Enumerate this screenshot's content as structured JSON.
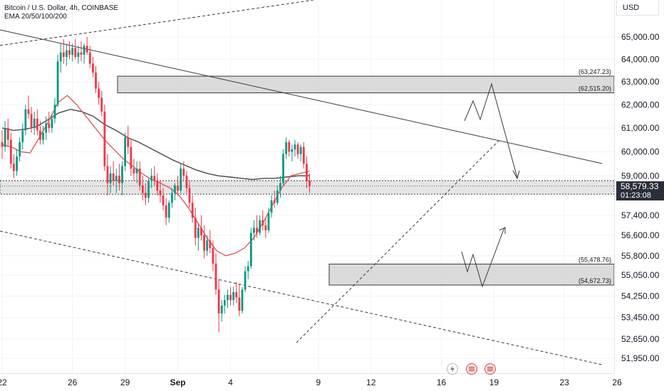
{
  "legend": {
    "symbol_line": "Bitcoin / U.S. Dollar, 4h, COINBASE",
    "indicator_line": "EMA 20/50/100/200"
  },
  "currency_label": "USD",
  "last_price": "58,579.33",
  "countdown": "01:23:08",
  "colors": {
    "up": "#089981",
    "down": "#f23645",
    "ema_fast": "#e05a5e",
    "ema_slow": "#4a4a4a",
    "zone_fill": "#cfcfcf",
    "zone_border": "#3a3a3a",
    "axis_text": "#131722",
    "grid": "#f0f3fa"
  },
  "chart_data": {
    "type": "candlestick",
    "symbol": "Bitcoin / U.S. Dollar",
    "interval": "4h",
    "exchange": "COINBASE",
    "ylim": [
      51500,
      66200
    ],
    "price_scale": "log",
    "y_ticks": [
      "65,000.00",
      "64,000.00",
      "63,000.00",
      "62,000.00",
      "61,000.00",
      "60,000.00",
      "59,000.00",
      "57,400.00",
      "56,600.00",
      "55,800.00",
      "55,050.00",
      "54,250.00",
      "53,450.00",
      "52,650.00",
      "51,950.00"
    ],
    "x_ticks": [
      {
        "label": "22",
        "bar": 0
      },
      {
        "label": "26",
        "bar": 24
      },
      {
        "label": "29",
        "bar": 42
      },
      {
        "label": "Sep",
        "bar": 60
      },
      {
        "label": "4",
        "bar": 78
      },
      {
        "label": "9",
        "bar": 108
      },
      {
        "label": "12",
        "bar": 126
      },
      {
        "label": "16",
        "bar": 150
      },
      {
        "label": "19",
        "bar": 168
      },
      {
        "label": "23",
        "bar": 192
      },
      {
        "label": "26",
        "bar": 210
      }
    ],
    "candles": [
      [
        60400,
        60900,
        59700,
        60200
      ],
      [
        60200,
        61300,
        60000,
        61000
      ],
      [
        61000,
        61400,
        60200,
        60500
      ],
      [
        60500,
        60800,
        59300,
        59500
      ],
      [
        59500,
        59900,
        58900,
        59200
      ],
      [
        59200,
        60100,
        59000,
        59800
      ],
      [
        59800,
        60600,
        59600,
        60400
      ],
      [
        60400,
        61200,
        60100,
        60900
      ],
      [
        60900,
        62000,
        60700,
        61800
      ],
      [
        61800,
        62400,
        61400,
        61600
      ],
      [
        61600,
        61900,
        60800,
        61000
      ],
      [
        61000,
        61700,
        60700,
        61400
      ],
      [
        61400,
        61800,
        60700,
        60900
      ],
      [
        60900,
        61300,
        60300,
        60500
      ],
      [
        60500,
        61100,
        60300,
        60800
      ],
      [
        60800,
        61500,
        60500,
        61200
      ],
      [
        61200,
        61700,
        60800,
        61000
      ],
      [
        61000,
        61600,
        60800,
        61400
      ],
      [
        61400,
        62300,
        61200,
        62000
      ],
      [
        62000,
        64200,
        61900,
        63900
      ],
      [
        63900,
        64700,
        63400,
        64300
      ],
      [
        64300,
        64900,
        63800,
        64100
      ],
      [
        64100,
        64700,
        63700,
        64400
      ],
      [
        64400,
        64800,
        64000,
        64200
      ],
      [
        64200,
        64700,
        63900,
        64500
      ],
      [
        64500,
        64900,
        64000,
        64100
      ],
      [
        64100,
        64600,
        63800,
        64300
      ],
      [
        64300,
        64800,
        63900,
        64200
      ],
      [
        64200,
        64700,
        63800,
        64600
      ],
      [
        64600,
        65000,
        64200,
        64300
      ],
      [
        64300,
        64600,
        63600,
        63800
      ],
      [
        63800,
        64100,
        63200,
        63400
      ],
      [
        63400,
        63700,
        62500,
        62700
      ],
      [
        62700,
        63000,
        62000,
        62300
      ],
      [
        62300,
        62600,
        61500,
        61700
      ],
      [
        61700,
        62000,
        59200,
        59400
      ],
      [
        59400,
        59900,
        58200,
        58700
      ],
      [
        58700,
        59400,
        58300,
        59100
      ],
      [
        59100,
        59600,
        58600,
        58800
      ],
      [
        58800,
        59300,
        58300,
        59000
      ],
      [
        59000,
        59500,
        58400,
        58700
      ],
      [
        58700,
        59600,
        58200,
        59400
      ],
      [
        59400,
        60800,
        59200,
        60600
      ],
      [
        60600,
        61100,
        59900,
        60200
      ],
      [
        60200,
        60500,
        59000,
        59300
      ],
      [
        59300,
        59700,
        58800,
        59100
      ],
      [
        59100,
        59600,
        58700,
        59300
      ],
      [
        59300,
        59600,
        58400,
        58600
      ],
      [
        58600,
        59000,
        58000,
        58300
      ],
      [
        58300,
        58700,
        57800,
        58100
      ],
      [
        58100,
        58900,
        57900,
        58800
      ],
      [
        58800,
        59300,
        58500,
        59000
      ],
      [
        59000,
        59400,
        58600,
        58800
      ],
      [
        58800,
        59100,
        58200,
        58400
      ],
      [
        58400,
        58800,
        57900,
        58200
      ],
      [
        58200,
        58500,
        57600,
        57800
      ],
      [
        57800,
        58100,
        57000,
        57300
      ],
      [
        57300,
        58000,
        57100,
        57900
      ],
      [
        57900,
        58500,
        57700,
        58300
      ],
      [
        58300,
        58700,
        58000,
        58600
      ],
      [
        58600,
        59000,
        58200,
        58400
      ],
      [
        58400,
        59500,
        58300,
        59300
      ],
      [
        59300,
        59600,
        58800,
        59000
      ],
      [
        59000,
        59200,
        58300,
        58500
      ],
      [
        58500,
        58800,
        57700,
        57900
      ],
      [
        57900,
        58200,
        57100,
        57300
      ],
      [
        57300,
        57700,
        56200,
        56500
      ],
      [
        56500,
        57100,
        56000,
        56900
      ],
      [
        56900,
        57400,
        56400,
        56600
      ],
      [
        56600,
        57000,
        55700,
        56000
      ],
      [
        56000,
        56600,
        55800,
        56400
      ],
      [
        56400,
        56800,
        55900,
        56100
      ],
      [
        56100,
        56400,
        55200,
        55500
      ],
      [
        55500,
        55900,
        54300,
        54500
      ],
      [
        54500,
        54900,
        52900,
        53600
      ],
      [
        53600,
        54100,
        53300,
        53900
      ],
      [
        53900,
        54300,
        53600,
        54100
      ],
      [
        54100,
        54500,
        53800,
        54300
      ],
      [
        54300,
        54600,
        53900,
        54100
      ],
      [
        54100,
        54600,
        53900,
        54400
      ],
      [
        54400,
        54800,
        54000,
        54200
      ],
      [
        54200,
        54700,
        53500,
        53700
      ],
      [
        53700,
        54600,
        53600,
        54500
      ],
      [
        54500,
        55400,
        54400,
        55200
      ],
      [
        55200,
        55600,
        54900,
        55400
      ],
      [
        55400,
        56900,
        55300,
        56700
      ],
      [
        56700,
        57200,
        56400,
        56900
      ],
      [
        56900,
        57400,
        56500,
        56700
      ],
      [
        56700,
        57400,
        56600,
        57200
      ],
      [
        57200,
        57600,
        56800,
        57000
      ],
      [
        57000,
        57300,
        56500,
        56800
      ],
      [
        56800,
        57700,
        56700,
        57500
      ],
      [
        57500,
        58200,
        57300,
        58000
      ],
      [
        58000,
        58400,
        57700,
        57900
      ],
      [
        57900,
        58600,
        57800,
        58400
      ],
      [
        58400,
        59000,
        58100,
        58700
      ],
      [
        58700,
        60100,
        58600,
        59900
      ],
      [
        59900,
        60600,
        59700,
        60400
      ],
      [
        60400,
        60500,
        59800,
        60000
      ],
      [
        60000,
        60300,
        59600,
        60100
      ],
      [
        60100,
        60500,
        59800,
        60300
      ],
      [
        60300,
        60400,
        59700,
        59900
      ],
      [
        59900,
        60300,
        59600,
        60200
      ],
      [
        60200,
        60400,
        59300,
        59500
      ],
      [
        59500,
        59800,
        58500,
        58800
      ],
      [
        58800,
        59100,
        58300,
        58579
      ]
    ],
    "ema_fast": [
      60300,
      60200,
      60000,
      59950,
      60600,
      61300,
      62100,
      62400,
      62000,
      61500,
      61000,
      60500,
      60100,
      59700,
      59400,
      59100,
      58850,
      58700,
      58500,
      58200,
      57700,
      57100,
      56500,
      56000,
      55800,
      55900,
      56100,
      56500,
      57100,
      57800,
      58500,
      59000,
      59100,
      59200
    ],
    "ema_slow": [
      61000,
      60900,
      60950,
      61050,
      61350,
      61650,
      61800,
      61700,
      61500,
      61150,
      60900,
      60600,
      60400,
      60150,
      59900,
      59650,
      59450,
      59250,
      59100,
      59000,
      58950,
      58900,
      58850,
      58900,
      58900,
      58950,
      59000,
      59000
    ],
    "zones": [
      {
        "top": 63247.23,
        "bottom": 62515.2,
        "top_label": "(63,247.23)",
        "bottom_label": "(62,515.20)"
      },
      {
        "top": 55478.76,
        "bottom": 54672.73,
        "top_label": "(55,478.76)",
        "bottom_label": "(54,672.73)"
      },
      {
        "top": 58800,
        "bottom": 58250,
        "top_label": "",
        "bottom_label": ""
      }
    ]
  }
}
